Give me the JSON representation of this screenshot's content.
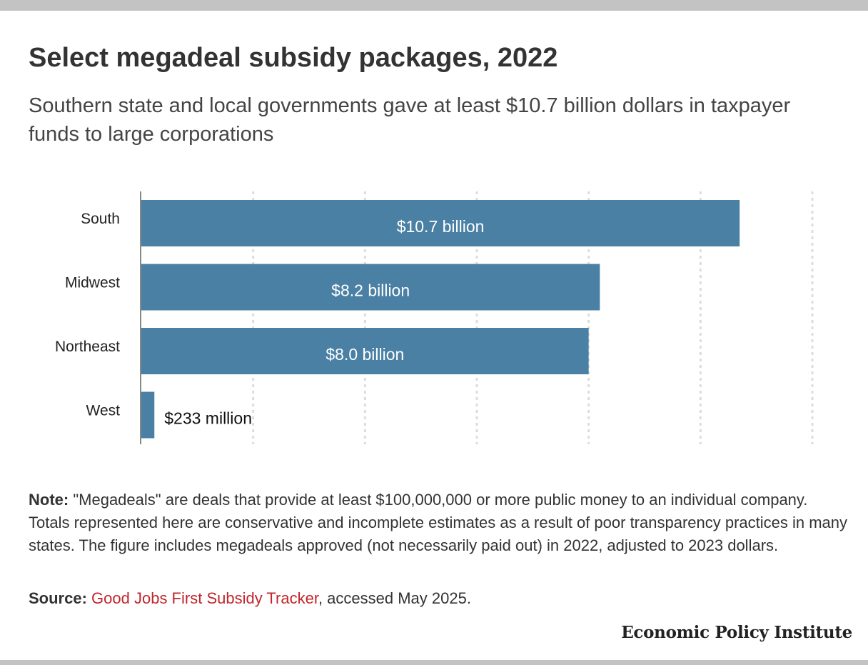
{
  "title": "Select megadeal subsidy packages, 2022",
  "subtitle": "Southern state and local governments gave at least $10.7 billion dollars in taxpayer funds to large corporations",
  "chart_data": {
    "type": "bar",
    "orientation": "horizontal",
    "categories": [
      "South",
      "Midwest",
      "Northeast",
      "West"
    ],
    "values": [
      10.7,
      8.2,
      8.0,
      0.233
    ],
    "value_unit": "billion dollars",
    "data_labels": [
      "$10.7 billion",
      "$8.2 billion",
      "$8.0 billion",
      "$233 million"
    ],
    "xlim": [
      0,
      12
    ],
    "grid": "vertical dotted",
    "bar_color": "#4a80a4"
  },
  "note": {
    "label": "Note:",
    "text": " \"Megadeals\" are deals that provide at least $100,000,000 or more public money to an individual company. Totals represented here are conservative and incomplete estimates as a result of poor transparency practices in many states. The figure includes megadeals approved (not necessarily paid out) in 2022, adjusted to 2023 dollars."
  },
  "source": {
    "label": "Source:",
    "link_text": "Good Jobs First Subsidy Tracker",
    "after": ", accessed May 2025."
  },
  "brand": "Economic Policy Institute",
  "colors": {
    "bar": "#4a80a4",
    "link": "#c0262d",
    "frame": "#c3c3c3"
  }
}
